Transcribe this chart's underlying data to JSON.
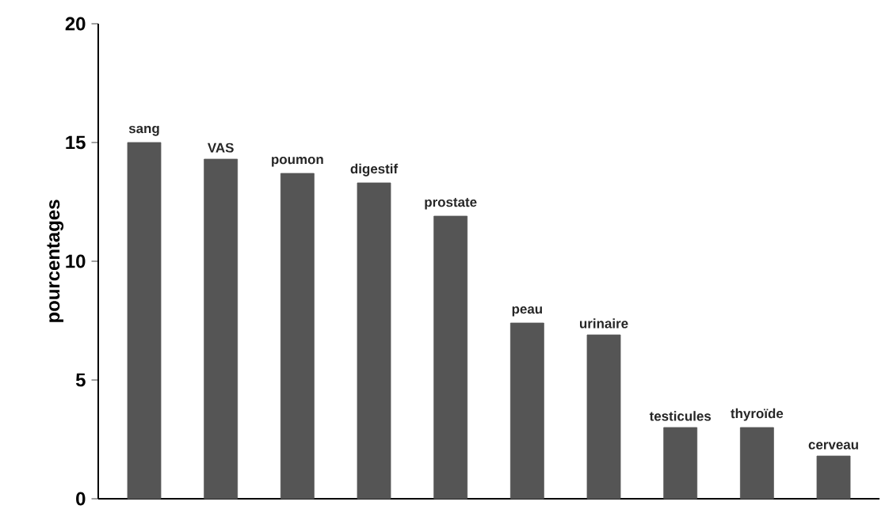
{
  "chart_data": {
    "type": "bar",
    "ylabel": "pourcentages",
    "categories": [
      "sang",
      "VAS",
      "poumon",
      "digestif",
      "prostate",
      "peau",
      "urinaire",
      "testicules",
      "thyroïde",
      "cerveau"
    ],
    "values": [
      15.0,
      14.3,
      13.7,
      13.3,
      11.9,
      7.4,
      6.9,
      3.0,
      3.0,
      1.8
    ],
    "color": "#555555",
    "ylim": [
      0,
      20
    ],
    "yticks": [
      0,
      5,
      10,
      15,
      20
    ]
  }
}
